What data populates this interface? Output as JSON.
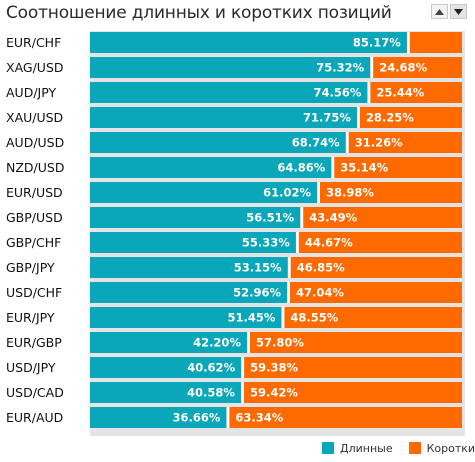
{
  "header": {
    "title": "Соотношение длинных и коротких позиций"
  },
  "controls": {
    "sort_up_icon": "triangle-up",
    "sort_down_icon": "triangle-down"
  },
  "colors": {
    "long": "#0aa6ba",
    "short": "#ff6a00",
    "track": "#eeeeee",
    "label_text": "#ffffff"
  },
  "legend": {
    "long_label": "Длинные",
    "short_label": "Короткие"
  },
  "chart_data": {
    "type": "bar",
    "orientation": "horizontal",
    "stacked": true,
    "unit": "%",
    "categories": [
      "EUR/CHF",
      "XAG/USD",
      "AUD/JPY",
      "XAU/USD",
      "AUD/USD",
      "NZD/USD",
      "EUR/USD",
      "GBP/USD",
      "GBP/CHF",
      "GBP/JPY",
      "USD/CHF",
      "EUR/JPY",
      "EUR/GBP",
      "USD/JPY",
      "USD/CAD",
      "EUR/AUD"
    ],
    "series": [
      {
        "name": "Длинные",
        "values": [
          85.17,
          75.32,
          74.56,
          71.75,
          68.74,
          64.86,
          61.02,
          56.51,
          55.33,
          53.15,
          52.96,
          51.45,
          42.2,
          40.62,
          40.58,
          36.66
        ]
      },
      {
        "name": "Короткие",
        "values": [
          14.83,
          24.68,
          25.44,
          28.25,
          31.26,
          35.14,
          38.98,
          43.49,
          44.67,
          46.85,
          47.04,
          48.55,
          57.8,
          59.38,
          59.42,
          63.34
        ]
      }
    ],
    "value_labels": {
      "long": [
        "85.17%",
        "75.32%",
        "74.56%",
        "71.75%",
        "68.74%",
        "64.86%",
        "61.02%",
        "56.51%",
        "55.33%",
        "53.15%",
        "52.96%",
        "51.45%",
        "42.20%",
        "40.62%",
        "40.58%",
        "36.66%"
      ],
      "short": [
        "",
        "24.68%",
        "25.44%",
        "28.25%",
        "31.26%",
        "35.14%",
        "38.98%",
        "43.49%",
        "44.67%",
        "46.85%",
        "47.04%",
        "48.55%",
        "57.80%",
        "59.38%",
        "59.42%",
        "63.34%"
      ]
    },
    "xlim": [
      0,
      100
    ],
    "legend_position": "bottom-right",
    "grid": false
  }
}
